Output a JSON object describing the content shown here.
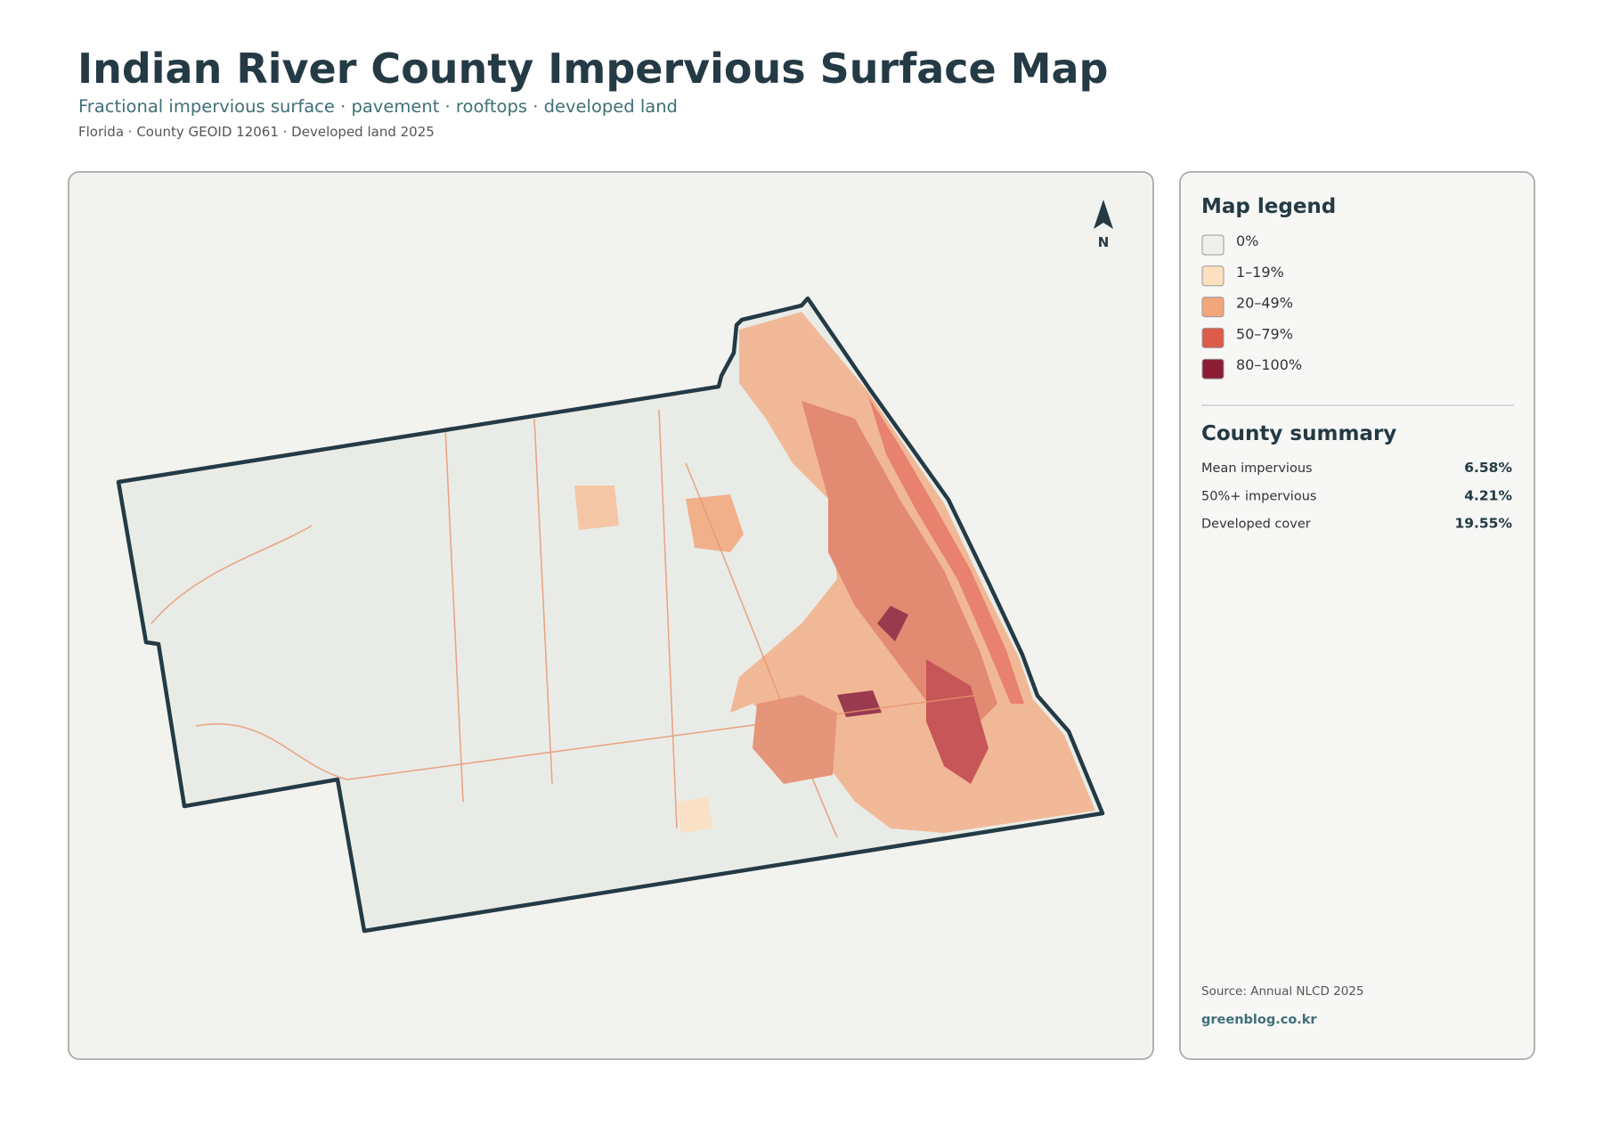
{
  "header": {
    "title": "Indian River County Impervious Surface Map",
    "subtitle": "Fractional impervious surface · pavement · rooftops · developed land",
    "meta": "Florida · County GEOID 12061 · Developed land 2025"
  },
  "map": {
    "north": "N"
  },
  "legend": {
    "title": "Map legend",
    "items": [
      {
        "label": "0%",
        "color": "#f0efeb"
      },
      {
        "label": "1–19%",
        "color": "#fde0c0"
      },
      {
        "label": "20–49%",
        "color": "#f3a57b"
      },
      {
        "label": "50–79%",
        "color": "#dc5b4a"
      },
      {
        "label": "80–100%",
        "color": "#8c1c35"
      }
    ]
  },
  "summary": {
    "title": "County summary",
    "rows": [
      {
        "label": "Mean impervious",
        "value": "6.58%"
      },
      {
        "label": "50%+ impervious",
        "value": "4.21%"
      },
      {
        "label": "Developed cover",
        "value": "19.55%"
      }
    ]
  },
  "footer": {
    "source": "Source: Annual NLCD 2025",
    "site": "greenblog.co.kr"
  }
}
